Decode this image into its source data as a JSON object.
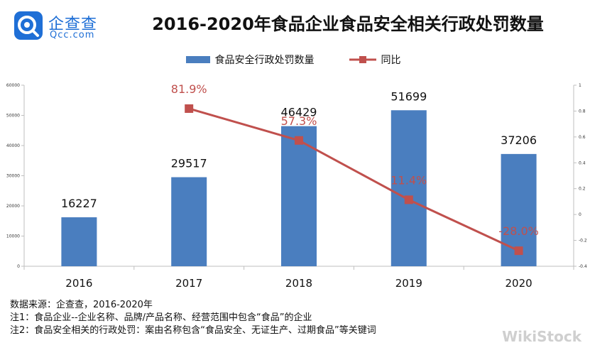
{
  "logo": {
    "name": "企查查",
    "sub": "Qcc.com",
    "color": "#1f6fd6"
  },
  "chart_data": {
    "type": "bar+line",
    "title": "2016-2020年食品企业食品安全相关行政处罚数量",
    "categories": [
      "2016",
      "2017",
      "2018",
      "2019",
      "2020"
    ],
    "series": [
      {
        "name": "食品安全行政处罚数量",
        "type": "bar",
        "axis": "left",
        "color": "#4a7ebf",
        "values": [
          16227,
          29517,
          46429,
          51699,
          37206
        ],
        "labels": [
          "16227",
          "29517",
          "46429",
          "51699",
          "37206"
        ]
      },
      {
        "name": "同比",
        "type": "line",
        "axis": "right",
        "color": "#c0504d",
        "values": [
          null,
          0.819,
          0.573,
          0.114,
          -0.28
        ],
        "labels": [
          "",
          "81.9%",
          "57.3%",
          "11.4%",
          "-28.0%"
        ]
      }
    ],
    "left_axis": {
      "min": 0,
      "max": 60000,
      "ticks": [
        "0",
        "10000",
        "20000",
        "30000",
        "40000",
        "50000",
        "60000"
      ]
    },
    "right_axis": {
      "min": -0.4,
      "max": 1,
      "ticks": [
        "-0.4",
        "-0.2",
        "0",
        "0.2",
        "0.4",
        "0.6",
        "0.8",
        "1"
      ]
    },
    "legend_position": "top-center",
    "grid": false
  },
  "notes": [
    "数据来源：企查查，2016-2020年",
    "注1：食品企业--企业名称、品牌/产品名称、经营范围中包含“食品”的企业",
    "注2：食品安全相关的行政处罚：案由名称包含“食品安全、无证生产、过期食品”等关键词"
  ],
  "watermark": "WikiStock"
}
